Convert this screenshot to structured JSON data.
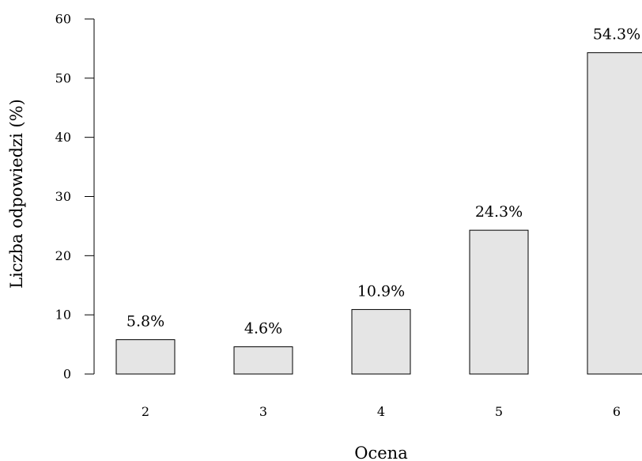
{
  "chart_data": {
    "type": "bar",
    "title": "",
    "xlabel": "Ocena",
    "ylabel": "Liczba odpowiedzi (%)",
    "categories": [
      "2",
      "3",
      "4",
      "5",
      "6"
    ],
    "values": [
      5.8,
      4.6,
      10.9,
      24.3,
      54.3
    ],
    "value_labels": [
      "5.8%",
      "4.6%",
      "10.9%",
      "24.3%",
      "54.3%"
    ],
    "ylim": [
      0,
      60
    ],
    "yticks": [
      "0",
      "10",
      "20",
      "30",
      "40",
      "50",
      "60"
    ],
    "grid": false,
    "legend": "none",
    "bar_fill": "#e5e5e5",
    "bar_stroke": "#000000"
  }
}
